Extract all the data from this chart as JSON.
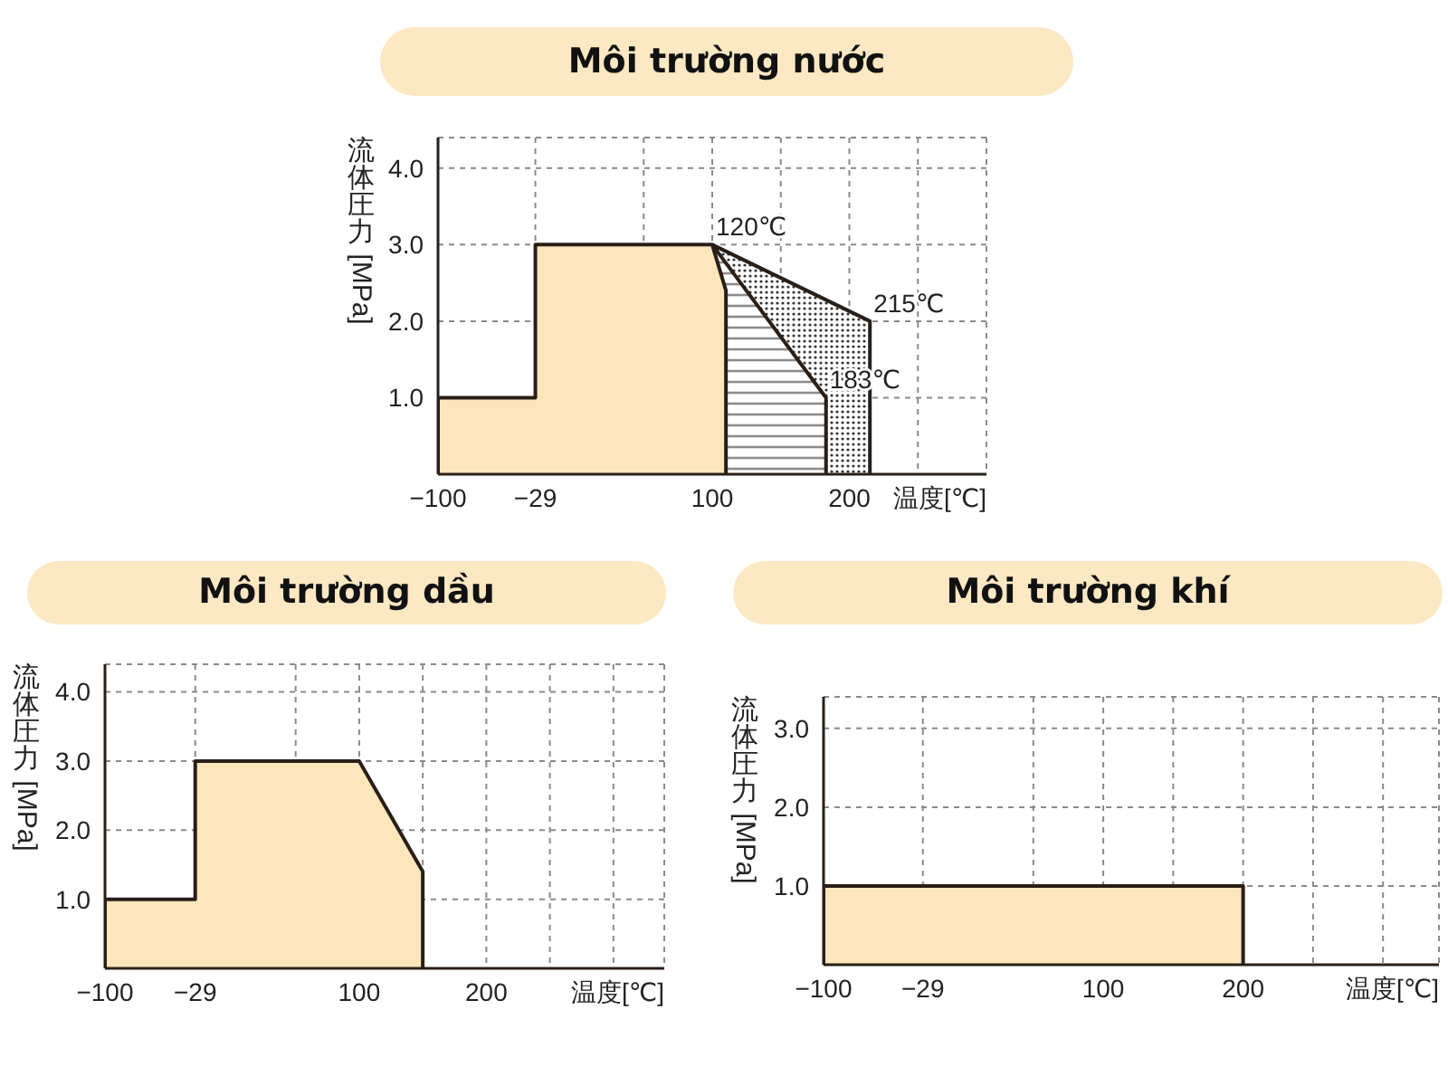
{
  "chart_data": [
    {
      "type": "area",
      "title": "Môi trường nước",
      "xlabel": "温度[℃]",
      "ylabel": "流体圧力 [MPa]",
      "xlim": [
        -100,
        300
      ],
      "xticks": [
        {
          "value": -100,
          "label": "−100"
        },
        {
          "value": -29,
          "label": "−29"
        },
        {
          "value": 50,
          "label": null
        },
        {
          "value": 100,
          "label": "100"
        },
        {
          "value": 150,
          "label": null
        },
        {
          "value": 200,
          "label": "200"
        },
        {
          "value": 250,
          "label": null
        }
      ],
      "ylim": [
        0,
        4.4
      ],
      "yticks": [
        {
          "value": 1,
          "label": "1.0"
        },
        {
          "value": 2,
          "label": "2.0"
        },
        {
          "value": 3,
          "label": "3.0"
        },
        {
          "value": 4,
          "label": "4.0"
        }
      ],
      "grid": true,
      "series": [
        {
          "color": "#fde6bc",
          "x": [
            -100,
            -100,
            -29,
            -29,
            100,
            110,
            110
          ],
          "values": [
            0,
            1,
            1,
            3,
            3,
            2.4,
            0
          ]
        },
        {
          "color": "#8c8c8c",
          "x": [
            100,
            183,
            183
          ],
          "values": [
            3,
            1,
            0
          ]
        },
        {
          "color": "#333333",
          "x": [
            100,
            215,
            215
          ],
          "values": [
            3,
            2,
            0
          ]
        }
      ],
      "annotations": [
        {
          "text": "120℃",
          "x": 100,
          "y": 3
        },
        {
          "text": "215℃",
          "x": 215,
          "y": 2
        },
        {
          "text": "183℃",
          "x": 183,
          "y": 1
        }
      ]
    },
    {
      "type": "area",
      "title": "Môi trường dầu",
      "xlabel": "温度[℃]",
      "ylabel": "流体圧力 [MPa]",
      "xlim": [
        -100,
        340
      ],
      "xticks": [
        {
          "value": -100,
          "label": "−100"
        },
        {
          "value": -29,
          "label": "−29"
        },
        {
          "value": 50,
          "label": null
        },
        {
          "value": 100,
          "label": "100"
        },
        {
          "value": 150,
          "label": null
        },
        {
          "value": 200,
          "label": "200"
        },
        {
          "value": 250,
          "label": null
        },
        {
          "value": 300,
          "label": null
        }
      ],
      "ylim": [
        0,
        4.4
      ],
      "yticks": [
        {
          "value": 1,
          "label": "1.0"
        },
        {
          "value": 2,
          "label": "2.0"
        },
        {
          "value": 3,
          "label": "3.0"
        },
        {
          "value": 4,
          "label": "4.0"
        }
      ],
      "grid": true,
      "series": [
        {
          "color": "#fde6bc",
          "x": [
            -100,
            -100,
            -29,
            -29,
            100,
            150,
            150
          ],
          "values": [
            0,
            1,
            1,
            3,
            3,
            1.4,
            0
          ]
        }
      ]
    },
    {
      "type": "area",
      "title": "Môi trường khí",
      "xlabel": "温度[℃]",
      "ylabel": "流体圧力 [MPa]",
      "xlim": [
        -100,
        340
      ],
      "xticks": [
        {
          "value": -100,
          "label": "−100"
        },
        {
          "value": -29,
          "label": "−29"
        },
        {
          "value": 50,
          "label": null
        },
        {
          "value": 100,
          "label": "100"
        },
        {
          "value": 150,
          "label": null
        },
        {
          "value": 200,
          "label": "200"
        },
        {
          "value": 250,
          "label": null
        },
        {
          "value": 300,
          "label": null
        }
      ],
      "ylim": [
        0,
        3.4
      ],
      "yticks": [
        {
          "value": 1,
          "label": "1.0"
        },
        {
          "value": 2,
          "label": "2.0"
        },
        {
          "value": 3,
          "label": "3.0"
        }
      ],
      "grid": true,
      "series": [
        {
          "color": "#fde6bc",
          "x": [
            -100,
            -100,
            200,
            200
          ],
          "values": [
            0,
            1,
            1,
            0
          ]
        }
      ]
    }
  ]
}
